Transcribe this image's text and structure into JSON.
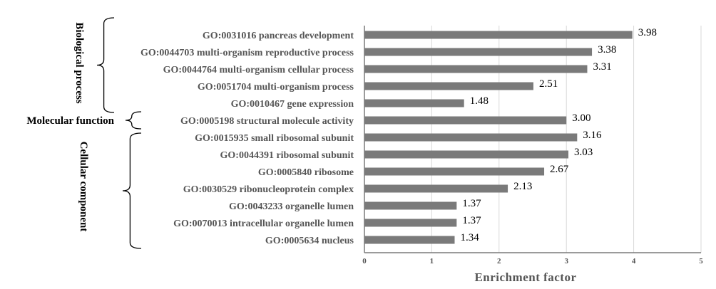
{
  "chart_data": {
    "type": "bar",
    "orientation": "horizontal",
    "categories": [
      "GO:0031016 pancreas development",
      "GO:0044703 multi-organism reproductive process",
      "GO:0044764 multi-organism cellular process",
      "GO:0051704 multi-organism process",
      "GO:0010467 gene expression",
      "GO:0005198 structural molecule activity",
      "GO:0015935 small ribosomal subunit",
      "GO:0044391 ribosomal subunit",
      "GO:0005840 ribosome",
      "GO:0030529 ribonucleoprotein complex",
      "GO:0043233 organelle lumen",
      "GO:0070013 intracellular organelle lumen",
      "GO:0005634 nucleus"
    ],
    "values": [
      3.98,
      3.38,
      3.31,
      2.51,
      1.48,
      3.0,
      3.16,
      3.03,
      2.67,
      2.13,
      1.37,
      1.37,
      1.34
    ],
    "value_labels": [
      "3.98",
      "3.38",
      "3.31",
      "2.51",
      "1.48",
      "3.00",
      "3.16",
      "3.03",
      "2.67",
      "2.13",
      "1.37",
      "1.37",
      "1.34"
    ],
    "xlabel": "Enrichment  factor",
    "xlim": [
      0,
      5
    ],
    "xticks": [
      "0",
      "1",
      "2",
      "3",
      "4",
      "5"
    ],
    "grid": "vertical",
    "bar_color": "#7a7a7a",
    "groups": [
      {
        "name": "Biological process",
        "start": 0,
        "end": 4
      },
      {
        "name": "Molecular function",
        "start": 5,
        "end": 5
      },
      {
        "name": "Cellular component",
        "start": 6,
        "end": 12
      }
    ]
  }
}
